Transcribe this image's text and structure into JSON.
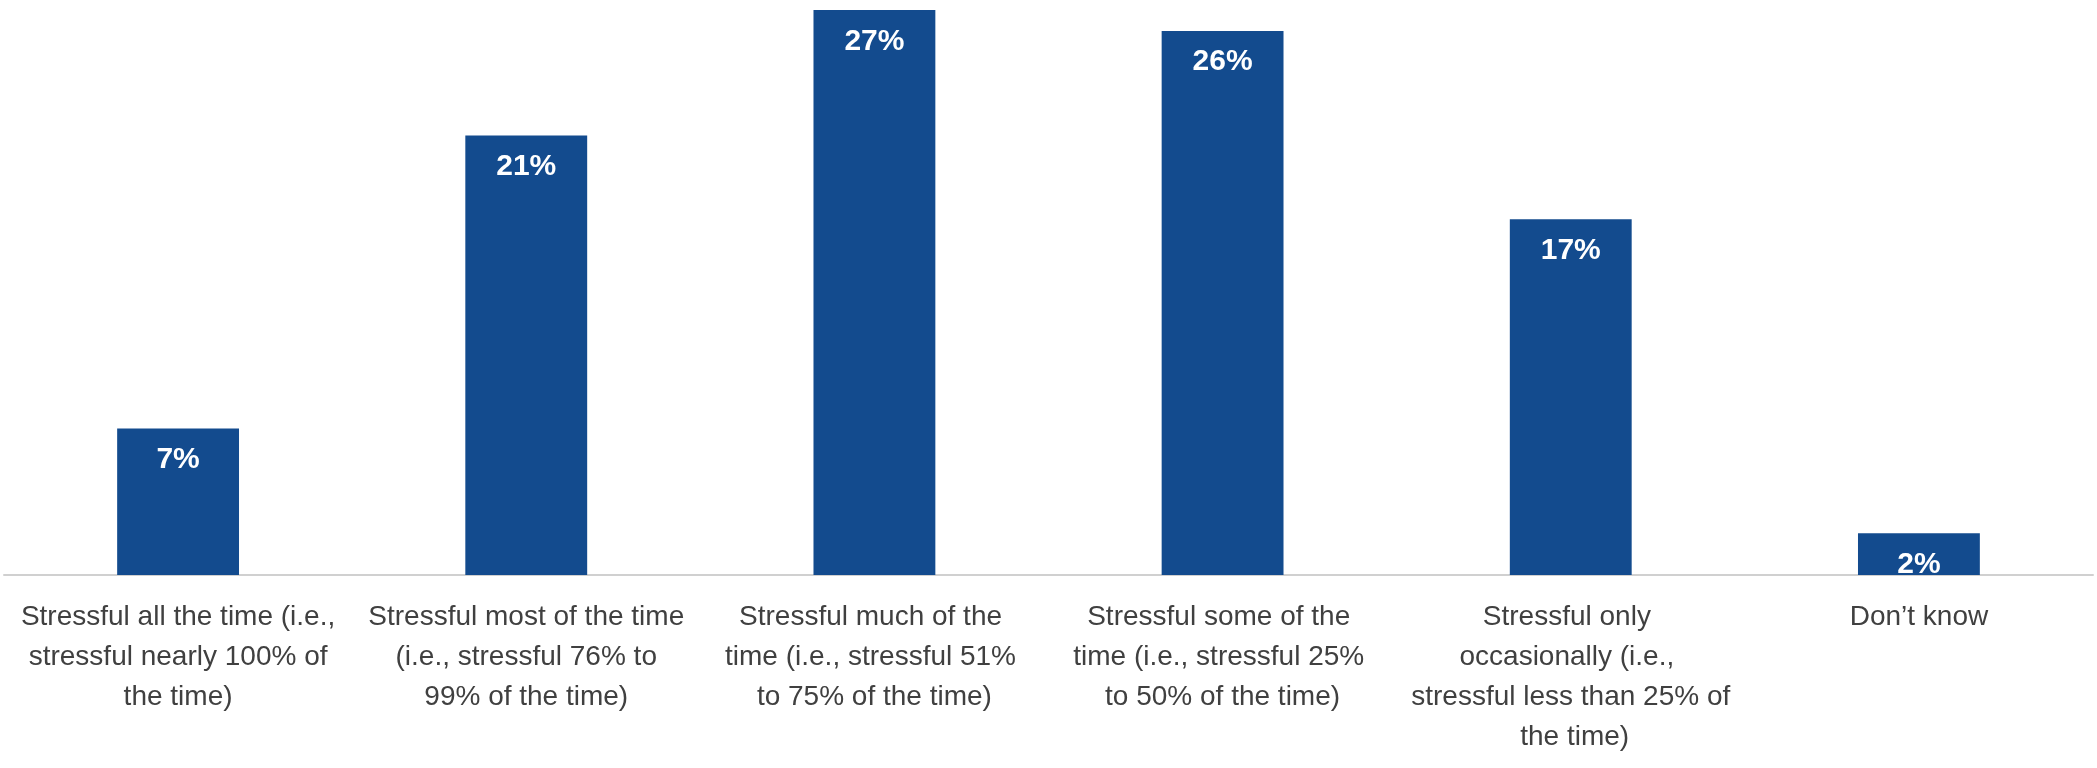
{
  "chart_data": {
    "type": "bar",
    "categories": [
      "Stressful all the time (i.e., stressful nearly 100% of the time)",
      "Stressful most of the time (i.e., stressful 76% to 99% of the time)",
      "Stressful much of the time (i.e., stressful 51% to 75% of the time)",
      "Stressful some of the time (i.e., stressful 25% to 50% of the time)",
      "Stressful only occasionally (i.e., stressful less than 25% of the time)",
      "Don’t know"
    ],
    "values": [
      7,
      21,
      27,
      26,
      17,
      2
    ],
    "value_labels": [
      "7%",
      "21%",
      "27%",
      "26%",
      "17%",
      "2%"
    ],
    "color": "#134b8e"
  }
}
